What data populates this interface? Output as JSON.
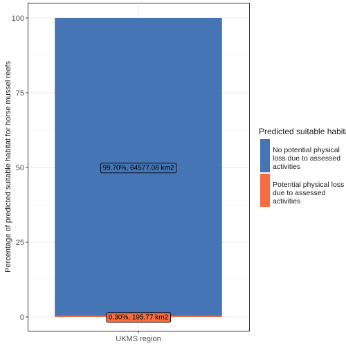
{
  "chart_data": {
    "type": "bar",
    "stacked": true,
    "categories": [
      "UKMS region"
    ],
    "series": [
      {
        "name": "No potential physical loss due to assessed activities",
        "values": [
          99.7
        ],
        "color": "#4575b4",
        "label": "99.70%, 64577.08 km2"
      },
      {
        "name": "Potential physical loss due to assessed activities",
        "values": [
          0.3
        ],
        "color": "#f46d43",
        "label": "0.30%,   195.77 km2"
      }
    ],
    "ylabel": "Percentage of predicted suitable habitat for horse mussel reefs",
    "xlabel": "",
    "ylim": [
      0,
      100
    ],
    "yticks": [
      0,
      25,
      50,
      75,
      100
    ],
    "grid": true,
    "legend": {
      "title": "Predicted suitable habitat",
      "position": "right",
      "items": [
        {
          "label": "No potential physical loss due to assessed activities",
          "color": "#4575b4"
        },
        {
          "label": "Potential physical loss due to assessed activities",
          "color": "#f46d43"
        }
      ]
    }
  }
}
